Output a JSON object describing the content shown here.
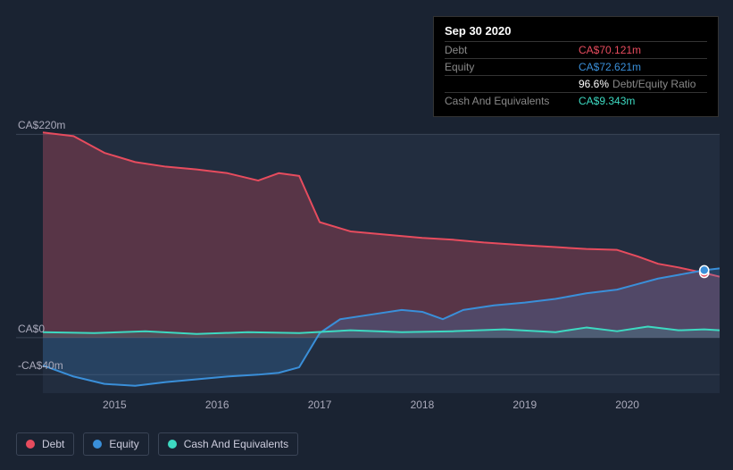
{
  "tooltip": {
    "date": "Sep 30 2020",
    "rows": [
      {
        "label": "Debt",
        "value": "CA$70.121m",
        "color": "#e74c5e"
      },
      {
        "label": "Equity",
        "value": "CA$72.621m",
        "color": "#3a8fd9"
      },
      {
        "label": "",
        "value": "96.6%",
        "suffix": "Debt/Equity Ratio",
        "color": "#ffffff"
      },
      {
        "label": "Cash And Equivalents",
        "value": "CA$9.343m",
        "color": "#3dd9c1"
      }
    ]
  },
  "chart": {
    "type": "area",
    "background_color": "#1a2332",
    "grid_color": "#3a4456",
    "label_color": "#aab",
    "label_fontsize": 12,
    "y_axis": {
      "ticks": [
        {
          "value": 220,
          "label": "CA$220m"
        },
        {
          "value": 0,
          "label": "CA$0"
        },
        {
          "value": -40,
          "label": "-CA$40m"
        }
      ],
      "min": -60,
      "max": 230
    },
    "x_axis": {
      "min": 2014.3,
      "max": 2020.9,
      "ticks": [
        2015,
        2016,
        2017,
        2018,
        2019,
        2020
      ]
    },
    "marker": {
      "x": 2020.75,
      "debt_y": 70,
      "equity_y": 73
    },
    "series": [
      {
        "name": "Debt",
        "color": "#e74c5e",
        "fill_opacity": 0.28,
        "line_width": 2,
        "points": [
          [
            2014.3,
            222
          ],
          [
            2014.6,
            218
          ],
          [
            2014.9,
            200
          ],
          [
            2015.2,
            190
          ],
          [
            2015.5,
            185
          ],
          [
            2015.8,
            182
          ],
          [
            2016.1,
            178
          ],
          [
            2016.4,
            170
          ],
          [
            2016.6,
            178
          ],
          [
            2016.8,
            175
          ],
          [
            2017.0,
            125
          ],
          [
            2017.3,
            115
          ],
          [
            2017.6,
            112
          ],
          [
            2018.0,
            108
          ],
          [
            2018.3,
            106
          ],
          [
            2018.6,
            103
          ],
          [
            2019.0,
            100
          ],
          [
            2019.3,
            98
          ],
          [
            2019.6,
            96
          ],
          [
            2019.9,
            95
          ],
          [
            2020.1,
            88
          ],
          [
            2020.3,
            80
          ],
          [
            2020.5,
            76
          ],
          [
            2020.75,
            70
          ],
          [
            2020.9,
            66
          ]
        ]
      },
      {
        "name": "Equity",
        "color": "#3a8fd9",
        "fill_opacity": 0.22,
        "line_width": 2,
        "points": [
          [
            2014.3,
            -30
          ],
          [
            2014.6,
            -42
          ],
          [
            2014.9,
            -50
          ],
          [
            2015.2,
            -52
          ],
          [
            2015.5,
            -48
          ],
          [
            2015.8,
            -45
          ],
          [
            2016.1,
            -42
          ],
          [
            2016.4,
            -40
          ],
          [
            2016.6,
            -38
          ],
          [
            2016.8,
            -32
          ],
          [
            2017.0,
            5
          ],
          [
            2017.2,
            20
          ],
          [
            2017.5,
            25
          ],
          [
            2017.8,
            30
          ],
          [
            2018.0,
            28
          ],
          [
            2018.2,
            20
          ],
          [
            2018.4,
            30
          ],
          [
            2018.7,
            35
          ],
          [
            2019.0,
            38
          ],
          [
            2019.3,
            42
          ],
          [
            2019.6,
            48
          ],
          [
            2019.9,
            52
          ],
          [
            2020.1,
            58
          ],
          [
            2020.3,
            64
          ],
          [
            2020.5,
            68
          ],
          [
            2020.75,
            73
          ],
          [
            2020.9,
            75
          ]
        ]
      },
      {
        "name": "Cash And Equivalents",
        "color": "#3dd9c1",
        "fill_opacity": 0.15,
        "line_width": 2,
        "points": [
          [
            2014.3,
            6
          ],
          [
            2014.8,
            5
          ],
          [
            2015.3,
            7
          ],
          [
            2015.8,
            4
          ],
          [
            2016.3,
            6
          ],
          [
            2016.8,
            5
          ],
          [
            2017.3,
            8
          ],
          [
            2017.8,
            6
          ],
          [
            2018.3,
            7
          ],
          [
            2018.8,
            9
          ],
          [
            2019.3,
            6
          ],
          [
            2019.6,
            11
          ],
          [
            2019.9,
            7
          ],
          [
            2020.2,
            12
          ],
          [
            2020.5,
            8
          ],
          [
            2020.75,
            9
          ],
          [
            2020.9,
            8
          ]
        ]
      }
    ]
  },
  "legend": [
    {
      "label": "Debt",
      "color": "#e74c5e"
    },
    {
      "label": "Equity",
      "color": "#3a8fd9"
    },
    {
      "label": "Cash And Equivalents",
      "color": "#3dd9c1"
    }
  ]
}
